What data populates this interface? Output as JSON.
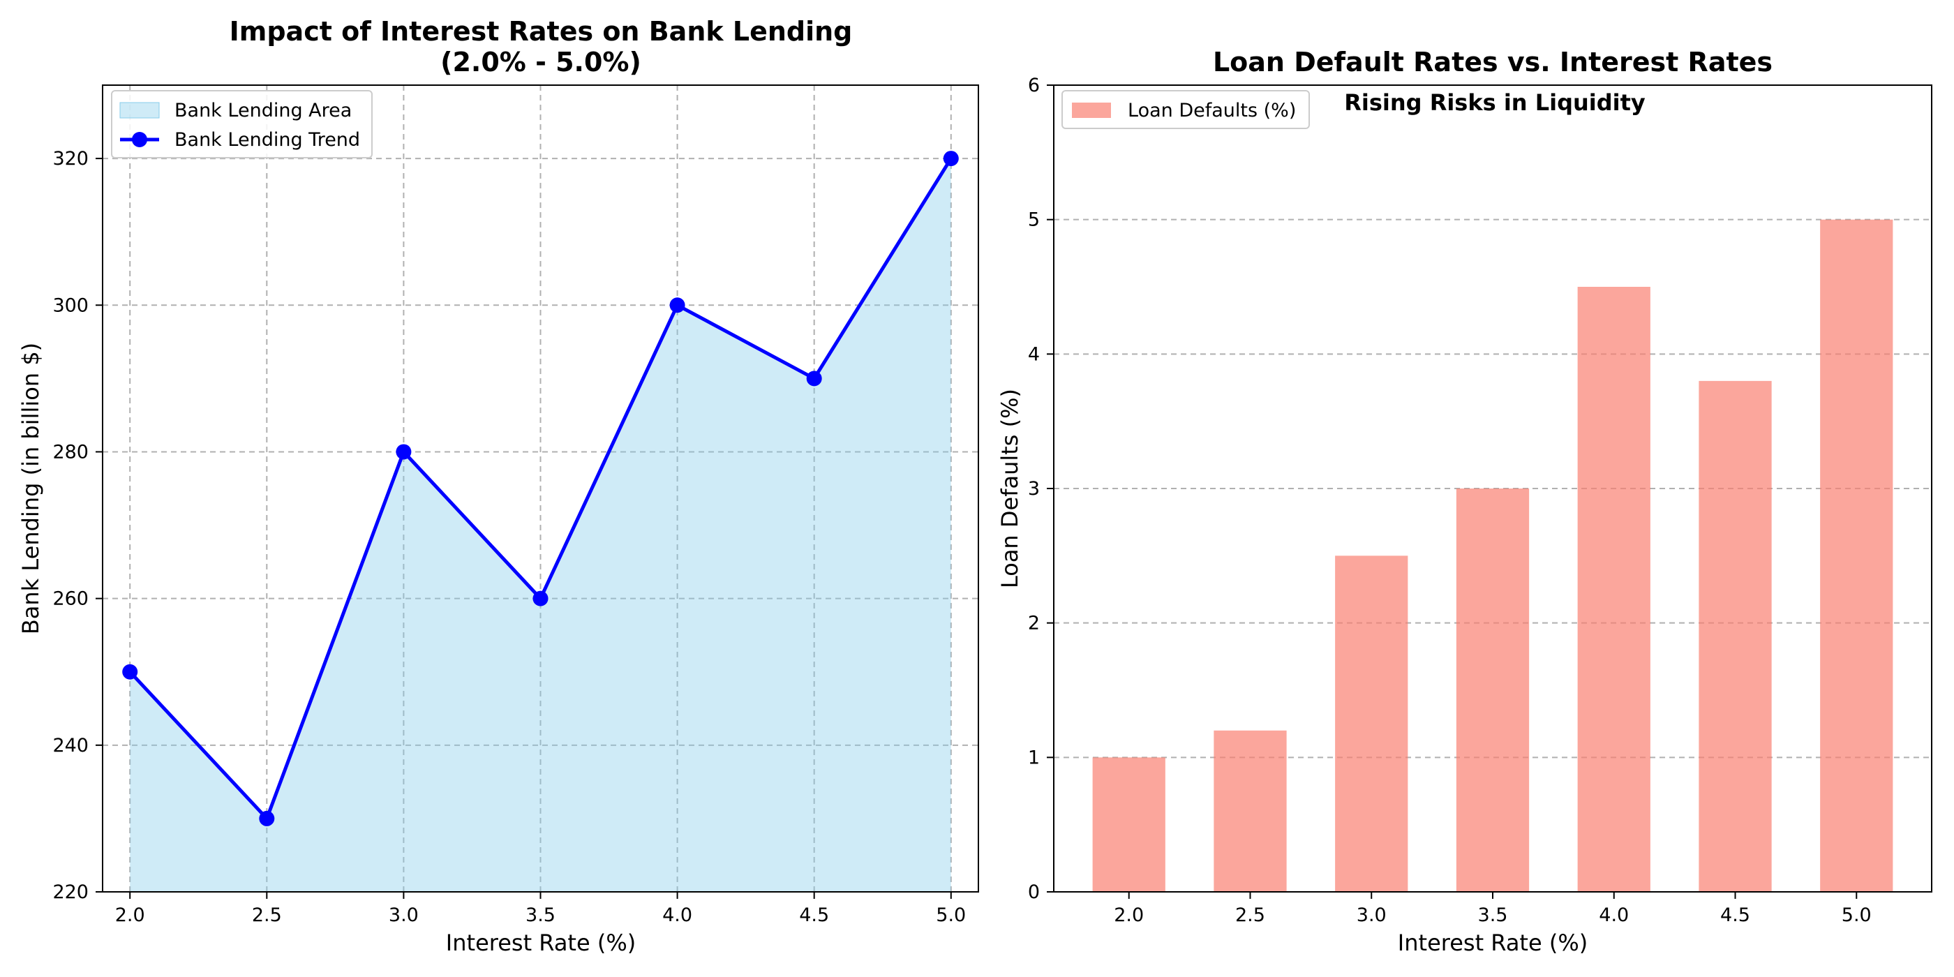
{
  "chart_data": [
    {
      "type": "line",
      "title": "Impact of Interest Rates on Bank Lending",
      "subtitle": "(2.0% - 5.0%)",
      "xlabel": "Interest Rate (%)",
      "ylabel": "Bank Lending (in billion $)",
      "x": [
        2.0,
        2.5,
        3.0,
        3.5,
        4.0,
        4.5,
        5.0
      ],
      "xticks": [
        "2.0",
        "2.5",
        "3.0",
        "3.5",
        "4.0",
        "4.5",
        "5.0"
      ],
      "yticks": [
        "220",
        "240",
        "260",
        "280",
        "300",
        "320"
      ],
      "xlim": [
        1.9,
        5.1
      ],
      "ylim": [
        220,
        330
      ],
      "grid": true,
      "legend_position": "top-left",
      "series": [
        {
          "name": "Bank Lending Area",
          "kind": "area",
          "values": [
            250,
            230,
            280,
            260,
            300,
            290,
            320
          ],
          "color": "#87CEEB"
        },
        {
          "name": "Bank Lending Trend",
          "kind": "line",
          "values": [
            250,
            230,
            280,
            260,
            300,
            290,
            320
          ],
          "color": "#0000FF"
        }
      ]
    },
    {
      "type": "bar",
      "title": "Loan Default Rates vs. Interest Rates",
      "annotation": "Rising Risks in Liquidity",
      "xlabel": "Interest Rate (%)",
      "ylabel": "Loan Defaults (%)",
      "categories": [
        "2.0",
        "2.5",
        "3.0",
        "3.5",
        "4.0",
        "4.5",
        "5.0"
      ],
      "yticks": [
        "0",
        "1",
        "2",
        "3",
        "4",
        "5",
        "6"
      ],
      "ylim": [
        0,
        6
      ],
      "grid": "y",
      "legend_position": "top-left",
      "series": [
        {
          "name": "Loan Defaults (%)",
          "values": [
            1.0,
            1.2,
            2.5,
            3.0,
            4.5,
            3.8,
            5.0
          ],
          "color": "#FA8072"
        }
      ]
    }
  ]
}
